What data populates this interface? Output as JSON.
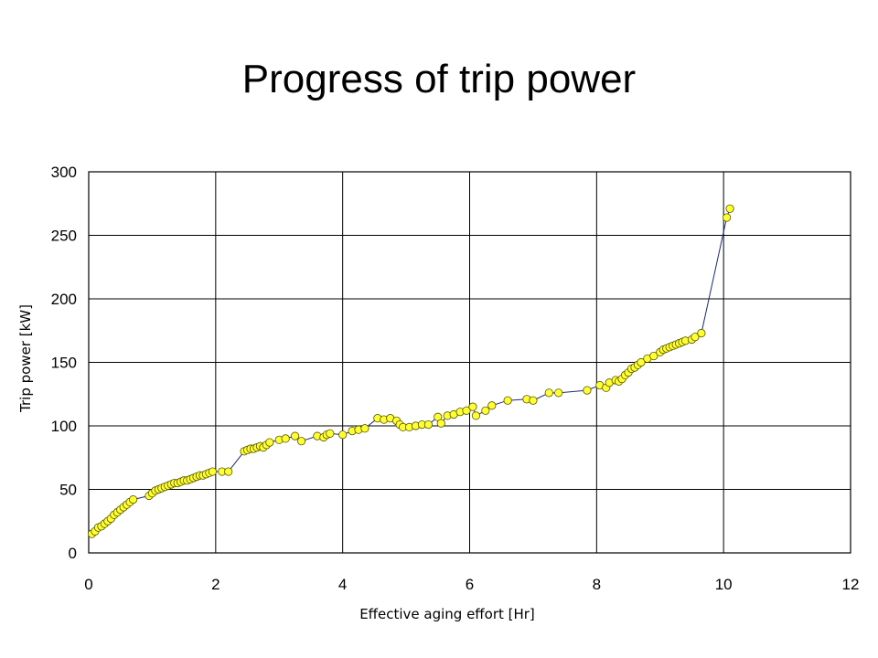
{
  "slide": {
    "title": "Progress of trip power"
  },
  "chart_data": {
    "type": "scatter",
    "xlabel": "Effective aging effort [Hr]",
    "ylabel": "Trip power [kW]",
    "xlim": [
      0,
      12
    ],
    "ylim": [
      0,
      300
    ],
    "xticks": [
      "0",
      "2",
      "4",
      "6",
      "8",
      "10",
      "12"
    ],
    "yticks": [
      "0",
      "50",
      "100",
      "150",
      "200",
      "250",
      "300"
    ],
    "grid": true,
    "line": true,
    "marker_color": "#ffff33",
    "marker_edge": "#555500",
    "line_color": "#1f2a7a",
    "series": [
      {
        "x": [
          0.05,
          0.1,
          0.15,
          0.2,
          0.25,
          0.3,
          0.35,
          0.4,
          0.45,
          0.5,
          0.55,
          0.6,
          0.65,
          0.7,
          0.95,
          1.0,
          1.05,
          1.1,
          1.15,
          1.2,
          1.25,
          1.3,
          1.35,
          1.4,
          1.45,
          1.5,
          1.55,
          1.6,
          1.65,
          1.7,
          1.75,
          1.8,
          1.85,
          1.9,
          1.95,
          2.1,
          2.2,
          2.45,
          2.5,
          2.55,
          2.6,
          2.65,
          2.7,
          2.75,
          2.8,
          2.85,
          3.0,
          3.1,
          3.25,
          3.35,
          3.6,
          3.7,
          3.75,
          3.8,
          4.0,
          4.15,
          4.25,
          4.35,
          4.55,
          4.65,
          4.75,
          4.85,
          4.9,
          4.95,
          5.05,
          5.15,
          5.25,
          5.35,
          5.5,
          5.55,
          5.65,
          5.75,
          5.85,
          5.95,
          6.05,
          6.1,
          6.25,
          6.35,
          6.6,
          6.9,
          7.0,
          7.25,
          7.4,
          7.85,
          8.05,
          8.15,
          8.2,
          8.3,
          8.35,
          8.4,
          8.45,
          8.5,
          8.55,
          8.6,
          8.65,
          8.7,
          8.8,
          8.9,
          9.0,
          9.05,
          9.1,
          9.15,
          9.2,
          9.25,
          9.3,
          9.35,
          9.4,
          9.5,
          9.55,
          9.65,
          10.05,
          10.1
        ],
        "y": [
          15,
          17,
          20,
          21,
          23,
          25,
          27,
          30,
          32,
          34,
          36,
          38,
          40,
          42,
          45,
          47,
          49,
          50,
          51,
          52,
          53,
          54,
          55,
          55,
          56,
          57,
          57,
          58,
          59,
          60,
          61,
          61,
          62,
          63,
          64,
          64,
          64,
          80,
          81,
          82,
          82,
          83,
          84,
          83,
          85,
          87,
          89,
          90,
          92,
          88,
          92,
          91,
          93,
          94,
          93,
          96,
          97,
          98,
          106,
          105,
          106,
          104,
          101,
          99,
          99,
          100,
          101,
          101,
          107,
          102,
          108,
          109,
          111,
          112,
          115,
          108,
          112,
          116,
          120,
          121,
          120,
          126,
          126,
          128,
          132,
          130,
          134,
          136,
          135,
          137,
          140,
          142,
          145,
          146,
          148,
          150,
          153,
          155,
          158,
          160,
          161,
          162,
          163,
          164,
          165,
          166,
          167,
          168,
          170,
          173,
          264,
          271
        ]
      }
    ]
  }
}
